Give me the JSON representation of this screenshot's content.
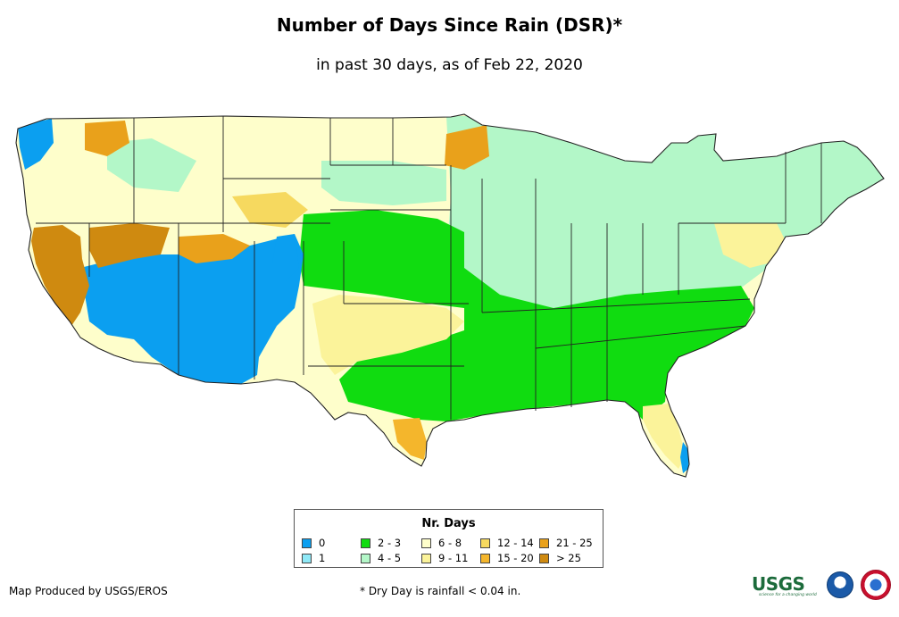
{
  "title": "Number of Days Since Rain (DSR)*",
  "subtitle": "in past 30 days, as of Feb 22, 2020",
  "legend": {
    "title": "Nr. Days",
    "items": [
      {
        "label": "0",
        "color": "#0b9ff0"
      },
      {
        "label": "2 - 3",
        "color": "#10dc10"
      },
      {
        "label": "6 - 8",
        "color": "#fefecb"
      },
      {
        "label": "12 - 14",
        "color": "#f6d95f"
      },
      {
        "label": "21 - 25",
        "color": "#e9a11b"
      },
      {
        "label": "1",
        "color": "#8fe9f7"
      },
      {
        "label": "4 - 5",
        "color": "#b3f7c8"
      },
      {
        "label": "9 - 11",
        "color": "#fbf39a"
      },
      {
        "label": "15 - 20",
        "color": "#f4b62c"
      },
      {
        "label": "> 25",
        "color": "#cf8a10"
      }
    ]
  },
  "credit": "Map Produced by USGS/EROS",
  "footnote": "* Dry Day is rainfall < 0.04 in.",
  "logos": {
    "usgs": "USGS",
    "usgs_tagline": "science for a changing world"
  }
}
